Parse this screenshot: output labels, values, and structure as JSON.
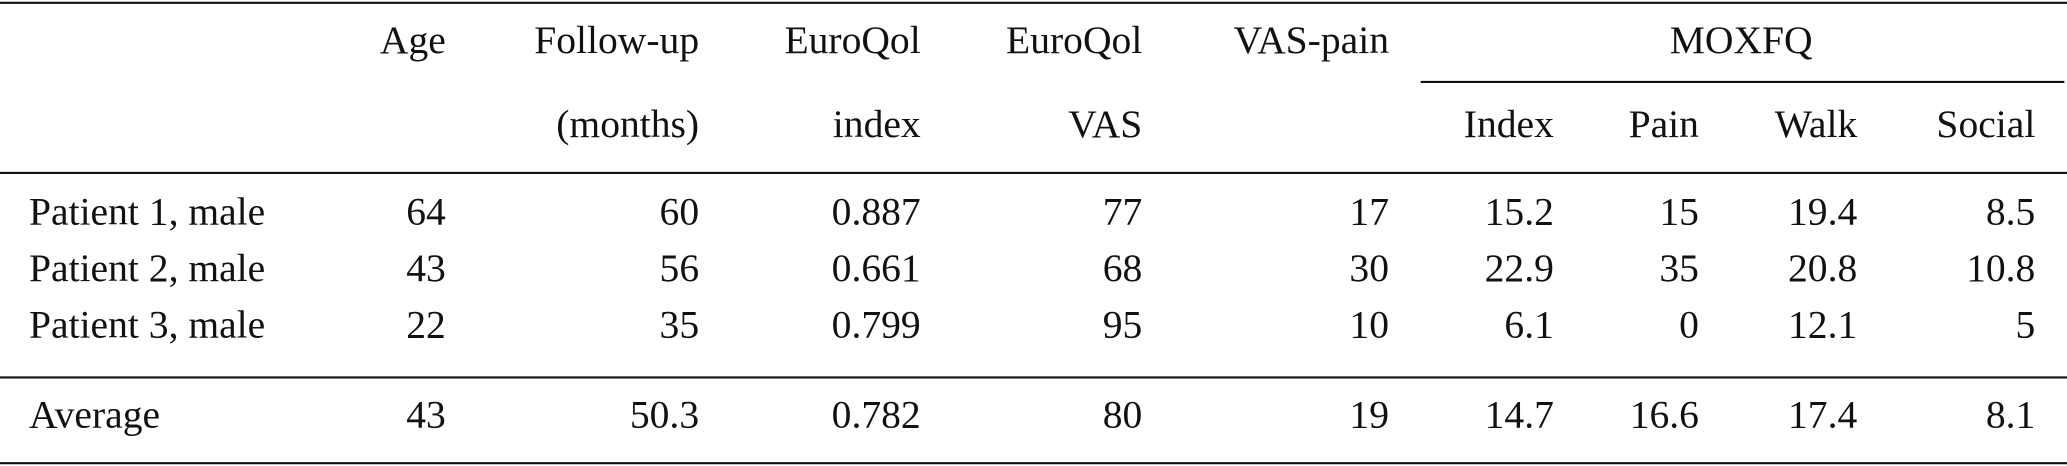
{
  "table": {
    "header_top": [
      "Age",
      "Follow-up",
      "EuroQol",
      "EuroQol",
      "VAS-pain",
      "MOXFQ"
    ],
    "header_bottom": [
      "(months)",
      "index",
      "VAS",
      "Index",
      "Pain",
      "Walk",
      "Social"
    ],
    "rows": [
      {
        "label": "Patient 1, male",
        "values": [
          "64",
          "60",
          "0.887",
          "77",
          "17",
          "15.2",
          "15",
          "19.4",
          "8.5"
        ]
      },
      {
        "label": "Patient 2, male",
        "values": [
          "43",
          "56",
          "0.661",
          "68",
          "30",
          "22.9",
          "35",
          "20.8",
          "10.8"
        ]
      },
      {
        "label": "Patient 3, male",
        "values": [
          "22",
          "35",
          "0.799",
          "95",
          "10",
          "6.1",
          "0",
          "12.1",
          "5"
        ]
      }
    ],
    "footer": {
      "label": "Average",
      "values": [
        "43",
        "50.3",
        "0.782",
        "80",
        "19",
        "14.7",
        "16.6",
        "17.4",
        "8.1"
      ]
    }
  }
}
